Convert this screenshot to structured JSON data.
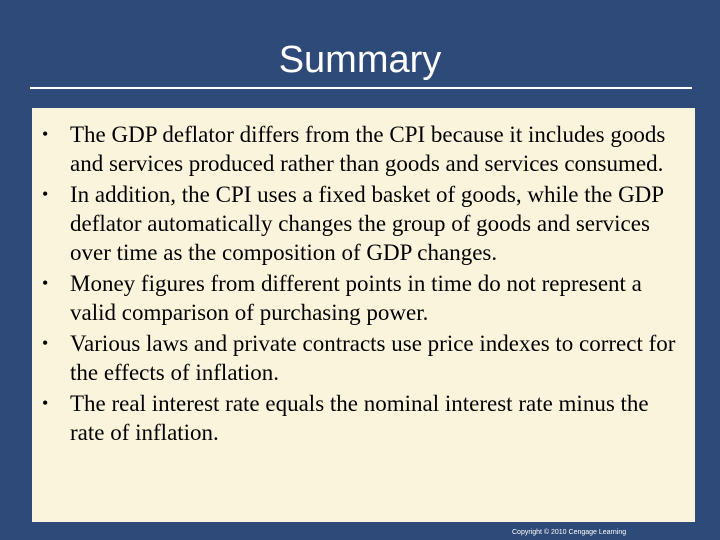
{
  "slide": {
    "title": "Summary",
    "bullets": [
      "The GDP deflator differs from the CPI because it includes goods and services produced rather than goods and services consumed.",
      "In addition, the CPI uses a fixed basket of goods, while the GDP deflator automatically changes the group of goods and services over time as the composition of GDP changes.",
      "Money figures from different points in time do not represent a valid comparison of purchasing power.",
      "Various laws and private contracts use price indexes to correct for the effects of inflation.",
      "The real interest rate equals the nominal interest rate minus the rate of inflation."
    ],
    "bullet_glyph": "•",
    "copyright": "Copyright © 2010 Cengage Learning"
  },
  "colors": {
    "background": "#2d4a78",
    "content_box": "#fbf4dc",
    "title_text": "#ffffff"
  }
}
